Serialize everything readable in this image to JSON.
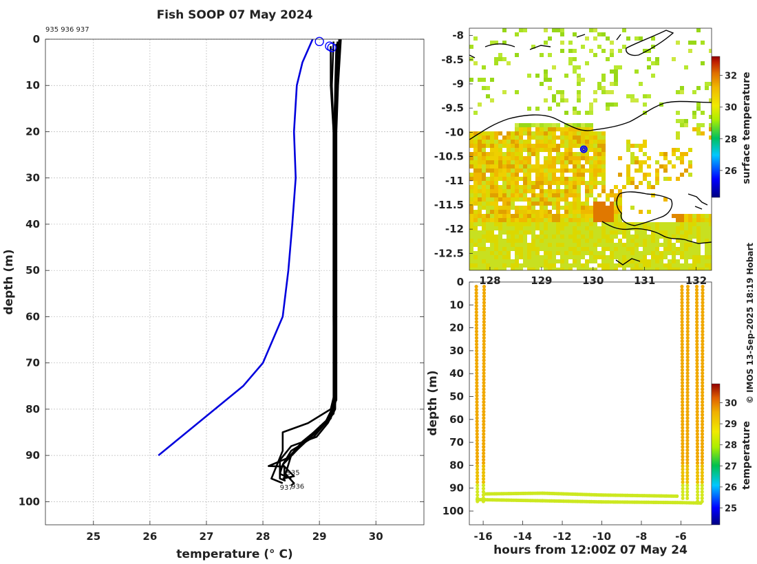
{
  "main_title": "Fish SOOP 07 May 2024",
  "profile_ids": "935 936 937",
  "copyright": "© IMOS 13-Sep-2025 18:19 Hobart",
  "colors": {
    "profile": "#000000",
    "climatology": "#0000dd",
    "marker": "#0000ff"
  },
  "chart_data": [
    {
      "type": "line",
      "name": "temperature-profiles",
      "xlabel": "temperature (° C)",
      "ylabel": "depth (m)",
      "xlim": [
        24.15,
        30.85
      ],
      "ylim": [
        0,
        105
      ],
      "y_reversed": true,
      "grid": true,
      "x_ticks": [
        25,
        26,
        27,
        28,
        29,
        30
      ],
      "y_ticks": [
        0,
        10,
        20,
        30,
        40,
        50,
        60,
        70,
        80,
        90,
        100
      ],
      "blue_profile": {
        "points": [
          [
            28.88,
            0
          ],
          [
            28.7,
            5
          ],
          [
            28.6,
            10
          ],
          [
            28.55,
            20
          ],
          [
            28.58,
            30
          ],
          [
            28.52,
            40
          ],
          [
            28.45,
            50
          ],
          [
            28.35,
            60
          ],
          [
            28.0,
            70
          ],
          [
            27.65,
            75
          ],
          [
            26.15,
            90
          ]
        ]
      },
      "profiles": [
        {
          "label": "935",
          "points": [
            [
              29.2,
              1.5
            ],
            [
              29.2,
              10
            ],
            [
              29.25,
              20
            ],
            [
              29.25,
              40
            ],
            [
              29.25,
              60
            ],
            [
              29.25,
              78
            ],
            [
              29.18,
              82
            ],
            [
              28.9,
              86
            ],
            [
              28.5,
              89
            ],
            [
              28.35,
              92
            ],
            [
              28.55,
              94.5
            ],
            [
              28.35,
              95
            ]
          ]
        },
        {
          "label": "936",
          "points": [
            [
              29.3,
              1
            ],
            [
              29.28,
              10
            ],
            [
              29.27,
              20
            ],
            [
              29.27,
              40
            ],
            [
              29.27,
              60
            ],
            [
              29.27,
              79
            ],
            [
              29.2,
              82
            ],
            [
              28.85,
              86
            ],
            [
              28.5,
              90
            ],
            [
              28.4,
              94
            ],
            [
              28.55,
              96
            ],
            [
              28.5,
              96.5
            ]
          ]
        },
        {
          "label": "937",
          "points": [
            [
              29.35,
              0
            ],
            [
              29.3,
              10
            ],
            [
              29.28,
              20
            ],
            [
              29.28,
              40
            ],
            [
              29.28,
              60
            ],
            [
              29.28,
              80
            ],
            [
              29.15,
              83
            ],
            [
              28.95,
              86
            ],
            [
              28.5,
              88
            ],
            [
              28.3,
              91
            ],
            [
              28.3,
              95
            ],
            [
              28.4,
              95.5
            ]
          ]
        },
        {
          "label": "",
          "points": [
            [
              29.25,
              0.5
            ],
            [
              29.22,
              10
            ],
            [
              29.25,
              20
            ],
            [
              29.25,
              40
            ],
            [
              29.25,
              60
            ],
            [
              29.26,
              77
            ],
            [
              29.2,
              80
            ],
            [
              28.8,
              83
            ],
            [
              28.35,
              85
            ],
            [
              28.35,
              89
            ],
            [
              28.15,
              95
            ],
            [
              28.35,
              96
            ]
          ]
        },
        {
          "label": "",
          "points": [
            [
              29.32,
              0.5
            ],
            [
              29.27,
              15
            ],
            [
              29.27,
              40
            ],
            [
              29.28,
              60
            ],
            [
              29.29,
              78
            ],
            [
              29.25,
              81
            ],
            [
              28.9,
              85
            ],
            [
              28.55,
              89.5
            ],
            [
              28.35,
              92
            ],
            [
              28.3,
              94
            ],
            [
              28.5,
              95
            ]
          ]
        },
        {
          "label": "",
          "points": [
            [
              29.38,
              0
            ],
            [
              29.33,
              10
            ],
            [
              29.3,
              20
            ],
            [
              29.3,
              40
            ],
            [
              29.3,
              60
            ],
            [
              29.3,
              78
            ],
            [
              29.1,
              83
            ],
            [
              28.7,
              87
            ],
            [
              28.45,
              90.5
            ],
            [
              28.1,
              92.3
            ],
            [
              28.38,
              92.4
            ],
            [
              28.38,
              95.5
            ]
          ]
        }
      ],
      "surface_markers": [
        [
          29.0,
          0.5
        ],
        [
          29.18,
          1.5
        ],
        [
          29.22,
          1.8
        ]
      ],
      "end_labels": [
        {
          "text": "935",
          "x": 28.42,
          "y": 94.2
        },
        {
          "text": "937",
          "x": 28.3,
          "y": 97.4
        },
        {
          "text": "936",
          "x": 28.5,
          "y": 97.2
        }
      ]
    },
    {
      "type": "heatmap",
      "name": "sea-surface-temperature-map",
      "colorbar_label": "surface temperature",
      "colorbar_ticks": [
        26,
        28,
        30,
        32
      ],
      "colorbar_range": [
        24.3,
        33.2
      ],
      "x_ticks": [
        128,
        129,
        130,
        131,
        132
      ],
      "xlim": [
        127.6,
        132.3
      ],
      "y_ticks": [
        -8,
        -8.5,
        -9,
        -9.5,
        -10,
        -10.5,
        -11,
        -11.5,
        -12,
        -12.5
      ],
      "ylim": [
        -12.85,
        -7.85
      ],
      "station": [
        129.82,
        -10.35
      ]
    },
    {
      "type": "scatter",
      "name": "depth-time-temperature",
      "xlabel": "hours from 12:00Z 07 May 24",
      "ylabel": "depth (m)",
      "x_ticks": [
        -16,
        -14,
        -12,
        -10,
        -8,
        -6
      ],
      "xlim": [
        -16.7,
        -4.45
      ],
      "y_ticks": [
        0,
        10,
        20,
        30,
        40,
        50,
        60,
        70,
        80,
        90,
        100
      ],
      "ylim": [
        0,
        106
      ],
      "y_reversed": true,
      "colorbar_label": "temperature",
      "colorbar_ticks": [
        25,
        26,
        27,
        28,
        29,
        30
      ],
      "colorbar_range": [
        24.2,
        30.9
      ],
      "casts": [
        {
          "x_start": -16.35,
          "x_end": -15.95,
          "bottom": 96
        },
        {
          "x_start": -5.95,
          "x_end": -5.65,
          "bottom": 95
        },
        {
          "x_start": -5.2,
          "x_end": -4.9,
          "bottom": 97
        }
      ],
      "bottom_tracks": [
        {
          "x": [
            -15.85,
            -13,
            -10,
            -6.2
          ],
          "depth": [
            92.5,
            92.2,
            93.0,
            93.5
          ],
          "temp": 28.3
        },
        {
          "x": [
            -16.3,
            -13,
            -10,
            -6,
            -5
          ],
          "depth": [
            95.0,
            95.5,
            96.0,
            96.3,
            96.5
          ],
          "temp": 28.2
        }
      ]
    }
  ]
}
